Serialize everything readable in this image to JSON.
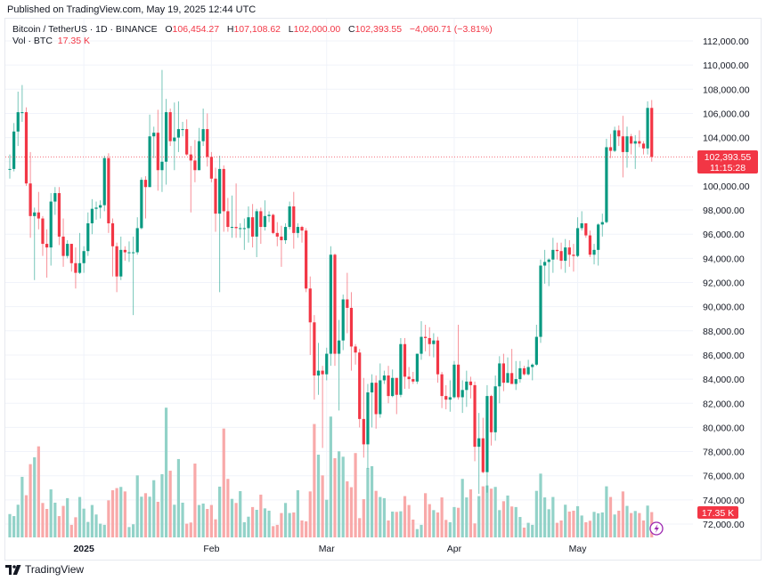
{
  "published": "Published on TradingView.com, May 19, 2025 12:44 UTC",
  "legend": {
    "symbol": "Bitcoin / TetherUS · 1D · BINANCE",
    "o_label": "O",
    "o_value": "106,454.27",
    "h_label": "H",
    "h_value": "107,108.62",
    "l_label": "L",
    "l_value": "102,000.00",
    "c_label": "C",
    "c_value": "102,393.55",
    "change": "−4,060.71 (−3.81%)",
    "vol_label": "Vol · BTC",
    "vol_value": "17.35 K"
  },
  "last_price": {
    "value": "102,393.55",
    "countdown": "11:15:28",
    "vol_badge": "17.35 K"
  },
  "logo_text": "TradingView",
  "icons": {
    "bolt": "lightning-bolt-icon",
    "logo": "tradingview-logo-icon"
  },
  "colors": {
    "up": "#089981",
    "down": "#f23645",
    "vol_up": "#92d2c8",
    "vol_down": "#f8a9a9",
    "grid": "#f0f3fa",
    "bolt": "#9c27b0"
  },
  "chart_data": {
    "type": "candlestick",
    "title": "",
    "y_range": [
      72000,
      112000
    ],
    "y_ticks": [
      "72,000.00",
      "74,000.00",
      "76,000.00",
      "78,000.00",
      "80,000.00",
      "82,000.00",
      "84,000.00",
      "86,000.00",
      "88,000.00",
      "90,000.00",
      "92,000.00",
      "94,000.00",
      "96,000.00",
      "98,000.00",
      "100,000.00",
      "102,000.00",
      "104,000.00",
      "106,000.00",
      "108,000.00",
      "110,000.00",
      "112,000.00"
    ],
    "x_ticks": [
      {
        "label": "2025",
        "date": "2025-01-01",
        "bold": true
      },
      {
        "label": "Feb",
        "date": "2025-02-01"
      },
      {
        "label": "Mar",
        "date": "2025-03-01"
      },
      {
        "label": "Apr",
        "date": "2025-04-01"
      },
      {
        "label": "May",
        "date": "2025-05-01"
      }
    ],
    "grid": true,
    "volume_unit": "K BTC",
    "columns": [
      "date",
      "open",
      "high",
      "low",
      "close",
      "volume_k"
    ],
    "candles": [
      [
        "2024-12-14",
        101400,
        102600,
        100600,
        101400,
        16.0
      ],
      [
        "2024-12-15",
        101400,
        105200,
        101200,
        104500,
        14.6
      ],
      [
        "2024-12-16",
        104500,
        107800,
        103300,
        106100,
        22.4
      ],
      [
        "2024-12-17",
        106100,
        108350,
        105300,
        106100,
        41.5
      ],
      [
        "2024-12-18",
        106100,
        106500,
        100000,
        100200,
        28.9
      ],
      [
        "2024-12-19",
        100200,
        102800,
        95700,
        97500,
        50.2
      ],
      [
        "2024-12-20",
        97500,
        98200,
        92200,
        97800,
        54.9
      ],
      [
        "2024-12-21",
        97800,
        99500,
        96400,
        97300,
        62.4
      ],
      [
        "2024-12-22",
        97300,
        97500,
        94200,
        95200,
        23.6
      ],
      [
        "2024-12-23",
        95200,
        96400,
        92400,
        94900,
        19.5
      ],
      [
        "2024-12-24",
        94900,
        99400,
        93400,
        98700,
        32.9
      ],
      [
        "2024-12-25",
        98700,
        99900,
        97600,
        99400,
        23.8
      ],
      [
        "2024-12-26",
        99400,
        99900,
        95100,
        95800,
        14.6
      ],
      [
        "2024-12-27",
        95800,
        97300,
        93300,
        94200,
        21.6
      ],
      [
        "2024-12-28",
        94200,
        95500,
        94000,
        95200,
        26.9
      ],
      [
        "2024-12-29",
        95200,
        95200,
        92900,
        93600,
        8.6
      ],
      [
        "2024-12-30",
        93600,
        94900,
        91500,
        92800,
        13.8
      ],
      [
        "2024-12-31",
        92800,
        96100,
        92700,
        93600,
        27.7
      ],
      [
        "2025-01-01",
        93600,
        95000,
        92800,
        94600,
        19.7
      ],
      [
        "2025-01-02",
        94600,
        97800,
        94200,
        96900,
        10.6
      ],
      [
        "2025-01-03",
        96900,
        98900,
        96000,
        98100,
        22.2
      ],
      [
        "2025-01-04",
        98100,
        98700,
        97200,
        98200,
        15.7
      ],
      [
        "2025-01-05",
        98200,
        98800,
        97300,
        98400,
        9.4
      ],
      [
        "2025-01-06",
        98400,
        102500,
        97900,
        102300,
        8.6
      ],
      [
        "2025-01-07",
        102300,
        102700,
        96100,
        96900,
        25.4
      ],
      [
        "2025-01-08",
        96900,
        97300,
        92500,
        95000,
        32.3
      ],
      [
        "2025-01-09",
        95000,
        95300,
        91200,
        92500,
        33.8
      ],
      [
        "2025-01-10",
        92500,
        95800,
        92200,
        94700,
        34.6
      ],
      [
        "2025-01-11",
        94700,
        95000,
        93800,
        94500,
        31.5
      ],
      [
        "2025-01-12",
        94500,
        95400,
        93700,
        94500,
        7.1
      ],
      [
        "2025-01-13",
        94500,
        95800,
        89300,
        94500,
        9.0
      ],
      [
        "2025-01-14",
        94500,
        97400,
        94300,
        96500,
        42.5
      ],
      [
        "2025-01-15",
        96500,
        100700,
        96400,
        100500,
        27.9
      ],
      [
        "2025-01-16",
        100500,
        100800,
        97300,
        99900,
        30.3
      ],
      [
        "2025-01-17",
        99900,
        105900,
        99900,
        104100,
        27.9
      ],
      [
        "2025-01-18",
        104100,
        104900,
        102300,
        104400,
        39.2
      ],
      [
        "2025-01-19",
        104400,
        106300,
        99600,
        101300,
        24.4
      ],
      [
        "2025-01-20",
        101300,
        109600,
        99500,
        102000,
        43.3
      ],
      [
        "2025-01-21",
        102000,
        107200,
        100100,
        106100,
        88.9
      ],
      [
        "2025-01-22",
        106100,
        106400,
        103300,
        103700,
        45.7
      ],
      [
        "2025-01-23",
        103700,
        106900,
        101300,
        104000,
        22.4
      ],
      [
        "2025-01-24",
        104000,
        107000,
        102800,
        104700,
        53.7
      ],
      [
        "2025-01-25",
        104700,
        105300,
        104100,
        104700,
        23.8
      ],
      [
        "2025-01-26",
        104700,
        105500,
        102500,
        102600,
        9.4
      ],
      [
        "2025-01-27",
        102600,
        103300,
        97800,
        102100,
        10.2
      ],
      [
        "2025-01-28",
        102100,
        103800,
        100300,
        101300,
        50.6
      ],
      [
        "2025-01-29",
        101300,
        104800,
        101300,
        103700,
        22.2
      ],
      [
        "2025-01-30",
        103700,
        106400,
        103300,
        104700,
        23.2
      ],
      [
        "2025-01-31",
        104700,
        106000,
        101600,
        102400,
        19.5
      ],
      [
        "2025-02-01",
        102400,
        102800,
        100300,
        100600,
        22.2
      ],
      [
        "2025-02-02",
        100600,
        101500,
        96200,
        97700,
        12.4
      ],
      [
        "2025-02-03",
        97700,
        102500,
        91200,
        101400,
        34.8
      ],
      [
        "2025-02-04",
        101400,
        101700,
        96200,
        97900,
        74.6
      ],
      [
        "2025-02-05",
        97900,
        99000,
        96200,
        96600,
        40.1
      ],
      [
        "2025-02-06",
        96600,
        99200,
        95700,
        96600,
        26.4
      ],
      [
        "2025-02-07",
        96600,
        100200,
        95700,
        96500,
        23.6
      ],
      [
        "2025-02-08",
        96500,
        96900,
        95700,
        96500,
        31.7
      ],
      [
        "2025-02-09",
        96500,
        97300,
        94700,
        96500,
        10.4
      ],
      [
        "2025-02-10",
        96500,
        98300,
        95300,
        97400,
        14.2
      ],
      [
        "2025-02-11",
        97400,
        98500,
        94900,
        95800,
        20.8
      ],
      [
        "2025-02-12",
        95800,
        98100,
        94100,
        97900,
        18.9
      ],
      [
        "2025-02-13",
        97900,
        98200,
        95200,
        96600,
        29.3
      ],
      [
        "2025-02-14",
        96600,
        98800,
        96300,
        97500,
        19.9
      ],
      [
        "2025-02-15",
        97500,
        97900,
        97000,
        97600,
        18.3
      ],
      [
        "2025-02-16",
        97600,
        97700,
        96000,
        96100,
        7.7
      ],
      [
        "2025-02-17",
        96100,
        97000,
        95000,
        95800,
        8.6
      ],
      [
        "2025-02-18",
        95800,
        96700,
        93300,
        95500,
        16.7
      ],
      [
        "2025-02-19",
        95500,
        96900,
        95200,
        96600,
        23.6
      ],
      [
        "2025-02-20",
        96600,
        98700,
        96400,
        98300,
        16.7
      ],
      [
        "2025-02-21",
        98300,
        99500,
        94800,
        96100,
        17.1
      ],
      [
        "2025-02-22",
        96100,
        96900,
        95700,
        96600,
        32.3
      ],
      [
        "2025-02-23",
        96600,
        96700,
        95300,
        96300,
        11.6
      ],
      [
        "2025-02-24",
        96300,
        96500,
        91200,
        91500,
        11.0
      ],
      [
        "2025-02-25",
        91500,
        92500,
        86000,
        88700,
        31.5
      ],
      [
        "2025-02-26",
        88700,
        89300,
        82300,
        84300,
        77.7
      ],
      [
        "2025-02-27",
        84300,
        87000,
        82700,
        84700,
        56.7
      ],
      [
        "2025-02-28",
        84700,
        85100,
        78300,
        84400,
        42.5
      ],
      [
        "2025-03-01",
        84400,
        86600,
        83900,
        86100,
        25.8
      ],
      [
        "2025-03-02",
        86100,
        95000,
        85100,
        94300,
        82.8
      ],
      [
        "2025-03-03",
        94300,
        94400,
        85100,
        86100,
        54.3
      ],
      [
        "2025-03-04",
        86100,
        88900,
        81400,
        87200,
        59.0
      ],
      [
        "2025-03-05",
        87200,
        91000,
        86400,
        90600,
        55.3
      ],
      [
        "2025-03-06",
        90600,
        92800,
        87800,
        89900,
        38.4
      ],
      [
        "2025-03-07",
        89900,
        91200,
        84700,
        86700,
        34.4
      ],
      [
        "2025-03-08",
        86700,
        86900,
        85200,
        86200,
        57.8
      ],
      [
        "2025-03-09",
        86200,
        86500,
        80000,
        80700,
        13.2
      ],
      [
        "2025-03-10",
        80700,
        84100,
        77500,
        78600,
        26.2
      ],
      [
        "2025-03-11",
        78600,
        83600,
        76600,
        82900,
        47.6
      ],
      [
        "2025-03-12",
        82900,
        84400,
        80000,
        83700,
        48.8
      ],
      [
        "2025-03-13",
        83700,
        84300,
        79900,
        81100,
        31.9
      ],
      [
        "2025-03-14",
        81100,
        85300,
        80800,
        83900,
        27.7
      ],
      [
        "2025-03-15",
        83900,
        84700,
        83600,
        84300,
        26.9
      ],
      [
        "2025-03-16",
        84300,
        85100,
        82000,
        82600,
        11.6
      ],
      [
        "2025-03-17",
        82600,
        84800,
        82500,
        84100,
        17.7
      ],
      [
        "2025-03-18",
        84100,
        84100,
        81100,
        82700,
        17.5
      ],
      [
        "2025-03-19",
        82700,
        87400,
        82500,
        86900,
        17.9
      ],
      [
        "2025-03-20",
        86900,
        87400,
        83200,
        84200,
        28.3
      ],
      [
        "2025-03-21",
        84200,
        85000,
        83200,
        84000,
        22.2
      ],
      [
        "2025-03-22",
        84000,
        84600,
        83600,
        83800,
        12.2
      ],
      [
        "2025-03-23",
        83800,
        86100,
        83600,
        86100,
        5.7
      ],
      [
        "2025-03-24",
        86100,
        88800,
        85600,
        87500,
        8.6
      ],
      [
        "2025-03-25",
        87500,
        88500,
        86300,
        87400,
        30.3
      ],
      [
        "2025-03-26",
        87400,
        88300,
        85900,
        86900,
        22.8
      ],
      [
        "2025-03-27",
        86900,
        87800,
        85800,
        87200,
        18.7
      ],
      [
        "2025-03-28",
        87200,
        87500,
        83700,
        84400,
        17.1
      ],
      [
        "2025-03-29",
        84400,
        84600,
        81600,
        82600,
        27.4
      ],
      [
        "2025-03-30",
        82600,
        83500,
        81500,
        82300,
        12.0
      ],
      [
        "2025-03-31",
        82300,
        83900,
        81300,
        82500,
        10.4
      ],
      [
        "2025-04-01",
        82500,
        85500,
        82400,
        85200,
        20.8
      ],
      [
        "2025-04-02",
        85200,
        88500,
        82300,
        82500,
        20.3
      ],
      [
        "2025-04-03",
        82500,
        83900,
        81200,
        83100,
        40.1
      ],
      [
        "2025-04-04",
        83100,
        84700,
        81700,
        83800,
        27.4
      ],
      [
        "2025-04-05",
        83800,
        84200,
        82400,
        83500,
        32.9
      ],
      [
        "2025-04-06",
        83500,
        83800,
        77200,
        78400,
        9.6
      ],
      [
        "2025-04-07",
        78400,
        81200,
        74500,
        79100,
        28.3
      ],
      [
        "2025-04-08",
        79100,
        80800,
        76200,
        76300,
        35.0
      ],
      [
        "2025-04-09",
        76300,
        83500,
        74600,
        82600,
        35.6
      ],
      [
        "2025-04-10",
        82600,
        82700,
        78500,
        79600,
        33.4
      ],
      [
        "2025-04-11",
        79600,
        84300,
        78900,
        83400,
        34.6
      ],
      [
        "2025-04-12",
        83400,
        85900,
        82000,
        85300,
        18.7
      ],
      [
        "2025-04-13",
        85300,
        86100,
        83000,
        83700,
        24.8
      ],
      [
        "2025-04-14",
        83700,
        85800,
        83700,
        84500,
        28.7
      ],
      [
        "2025-04-15",
        84500,
        86500,
        83600,
        83600,
        21.2
      ],
      [
        "2025-04-16",
        83600,
        85500,
        83100,
        84000,
        20.8
      ],
      [
        "2025-04-17",
        84000,
        85500,
        83700,
        84900,
        14.0
      ],
      [
        "2025-04-18",
        84900,
        85100,
        84300,
        84400,
        6.7
      ],
      [
        "2025-04-19",
        84400,
        85600,
        84300,
        85000,
        10.0
      ],
      [
        "2025-04-20",
        85000,
        85300,
        83900,
        85200,
        8.6
      ],
      [
        "2025-04-21",
        85200,
        88500,
        85100,
        87500,
        31.9
      ],
      [
        "2025-04-22",
        87500,
        93900,
        87000,
        93400,
        43.7
      ],
      [
        "2025-04-23",
        93400,
        94700,
        91900,
        93700,
        27.4
      ],
      [
        "2025-04-24",
        93700,
        94000,
        91700,
        93900,
        19.3
      ],
      [
        "2025-04-25",
        93900,
        95700,
        92800,
        94700,
        27.7
      ],
      [
        "2025-04-26",
        94700,
        95300,
        93900,
        94600,
        10.0
      ],
      [
        "2025-04-27",
        94600,
        95300,
        93100,
        93800,
        11.6
      ],
      [
        "2025-04-28",
        93800,
        95600,
        92800,
        94900,
        22.4
      ],
      [
        "2025-04-29",
        94900,
        95500,
        93300,
        94300,
        17.7
      ],
      [
        "2025-04-30",
        94300,
        95200,
        92900,
        94200,
        18.3
      ],
      [
        "2025-05-01",
        94200,
        97400,
        94100,
        96500,
        21.4
      ],
      [
        "2025-05-02",
        96500,
        97900,
        96300,
        96900,
        15.0
      ],
      [
        "2025-05-03",
        96900,
        96900,
        95700,
        95900,
        10.4
      ],
      [
        "2025-05-04",
        95900,
        96300,
        94100,
        94300,
        11.4
      ],
      [
        "2025-05-05",
        94300,
        95200,
        93500,
        94700,
        17.5
      ],
      [
        "2025-05-06",
        94700,
        96900,
        93400,
        96800,
        16.5
      ],
      [
        "2025-05-07",
        96800,
        97700,
        95800,
        97000,
        17.1
      ],
      [
        "2025-05-08",
        97000,
        103900,
        96900,
        103200,
        35.0
      ],
      [
        "2025-05-09",
        103200,
        104300,
        102300,
        102900,
        27.7
      ],
      [
        "2025-05-10",
        102900,
        104900,
        102800,
        104600,
        15.7
      ],
      [
        "2025-05-11",
        104600,
        105000,
        103300,
        104100,
        18.3
      ],
      [
        "2025-05-12",
        104100,
        105800,
        100700,
        102800,
        31.5
      ],
      [
        "2025-05-13",
        102800,
        104900,
        101500,
        104100,
        21.6
      ],
      [
        "2025-05-14",
        104100,
        104300,
        102600,
        103500,
        16.7
      ],
      [
        "2025-05-15",
        103500,
        104200,
        101400,
        103700,
        18.1
      ],
      [
        "2025-05-16",
        103700,
        104600,
        103200,
        103500,
        16.7
      ],
      [
        "2025-05-17",
        103500,
        103700,
        102600,
        103100,
        11.6
      ],
      [
        "2025-05-18",
        103100,
        107000,
        102600,
        106454.27,
        21.8
      ],
      [
        "2025-05-19",
        106454.27,
        107108.62,
        102000,
        102393.55,
        17.35
      ]
    ],
    "last_close": 102393.55
  }
}
